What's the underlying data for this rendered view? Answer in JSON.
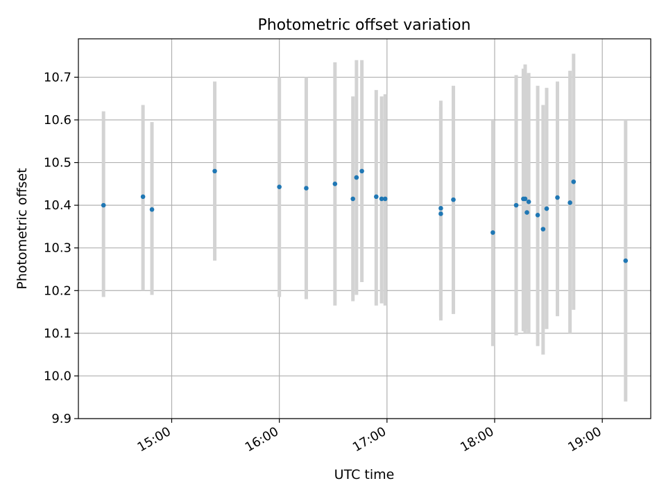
{
  "chart_data": {
    "type": "scatter",
    "title": "Photometric offset variation",
    "xlabel": "UTC time",
    "ylabel": "Photometric offset",
    "xlim": [
      "14:08",
      "19:27"
    ],
    "ylim": [
      9.9,
      10.79
    ],
    "grid": true,
    "x_ticks": [
      "15:00",
      "16:00",
      "17:00",
      "18:00",
      "19:00"
    ],
    "y_ticks": [
      "9.9",
      "10.0",
      "10.1",
      "10.2",
      "10.3",
      "10.4",
      "10.5",
      "10.6",
      "10.7"
    ],
    "colors": {
      "point": "#1f77b4",
      "errorbar": "#d3d3d3",
      "grid": "#b0b0b0"
    },
    "points": [
      {
        "x": "14:22",
        "y": 10.4,
        "ylow": 10.185,
        "yhigh": 10.62
      },
      {
        "x": "14:44",
        "y": 10.42,
        "ylow": 10.2,
        "yhigh": 10.635
      },
      {
        "x": "14:49",
        "y": 10.39,
        "ylow": 10.19,
        "yhigh": 10.595
      },
      {
        "x": "15:24",
        "y": 10.48,
        "ylow": 10.27,
        "yhigh": 10.69
      },
      {
        "x": "16:00",
        "y": 10.443,
        "ylow": 10.185,
        "yhigh": 10.7
      },
      {
        "x": "16:15",
        "y": 10.44,
        "ylow": 10.18,
        "yhigh": 10.7
      },
      {
        "x": "16:31",
        "y": 10.45,
        "ylow": 10.165,
        "yhigh": 10.735
      },
      {
        "x": "16:41",
        "y": 10.415,
        "ylow": 10.175,
        "yhigh": 10.655
      },
      {
        "x": "16:43",
        "y": 10.465,
        "ylow": 10.19,
        "yhigh": 10.74
      },
      {
        "x": "16:46",
        "y": 10.48,
        "ylow": 10.22,
        "yhigh": 10.74
      },
      {
        "x": "16:54",
        "y": 10.42,
        "ylow": 10.165,
        "yhigh": 10.67
      },
      {
        "x": "16:57",
        "y": 10.415,
        "ylow": 10.17,
        "yhigh": 10.655
      },
      {
        "x": "16:59",
        "y": 10.415,
        "ylow": 10.165,
        "yhigh": 10.66
      },
      {
        "x": "17:30",
        "y": 10.393,
        "ylow": 10.14,
        "yhigh": 10.645
      },
      {
        "x": "17:30",
        "y": 10.38,
        "ylow": 10.13,
        "yhigh": 10.63
      },
      {
        "x": "17:37",
        "y": 10.413,
        "ylow": 10.145,
        "yhigh": 10.68
      },
      {
        "x": "17:59",
        "y": 10.336,
        "ylow": 10.07,
        "yhigh": 10.6
      },
      {
        "x": "18:12",
        "y": 10.4,
        "ylow": 10.095,
        "yhigh": 10.705
      },
      {
        "x": "18:16",
        "y": 10.415,
        "ylow": 10.105,
        "yhigh": 10.72
      },
      {
        "x": "18:17",
        "y": 10.415,
        "ylow": 10.1,
        "yhigh": 10.73
      },
      {
        "x": "18:18",
        "y": 10.383,
        "ylow": 10.11,
        "yhigh": 10.705
      },
      {
        "x": "18:19",
        "y": 10.408,
        "ylow": 10.1,
        "yhigh": 10.71
      },
      {
        "x": "18:24",
        "y": 10.377,
        "ylow": 10.07,
        "yhigh": 10.68
      },
      {
        "x": "18:27",
        "y": 10.344,
        "ylow": 10.05,
        "yhigh": 10.635
      },
      {
        "x": "18:29",
        "y": 10.392,
        "ylow": 10.11,
        "yhigh": 10.675
      },
      {
        "x": "18:35",
        "y": 10.418,
        "ylow": 10.14,
        "yhigh": 10.69
      },
      {
        "x": "18:42",
        "y": 10.406,
        "ylow": 10.1,
        "yhigh": 10.715
      },
      {
        "x": "18:44",
        "y": 10.455,
        "ylow": 10.155,
        "yhigh": 10.755
      },
      {
        "x": "19:13",
        "y": 10.27,
        "ylow": 9.94,
        "yhigh": 10.6
      }
    ]
  }
}
